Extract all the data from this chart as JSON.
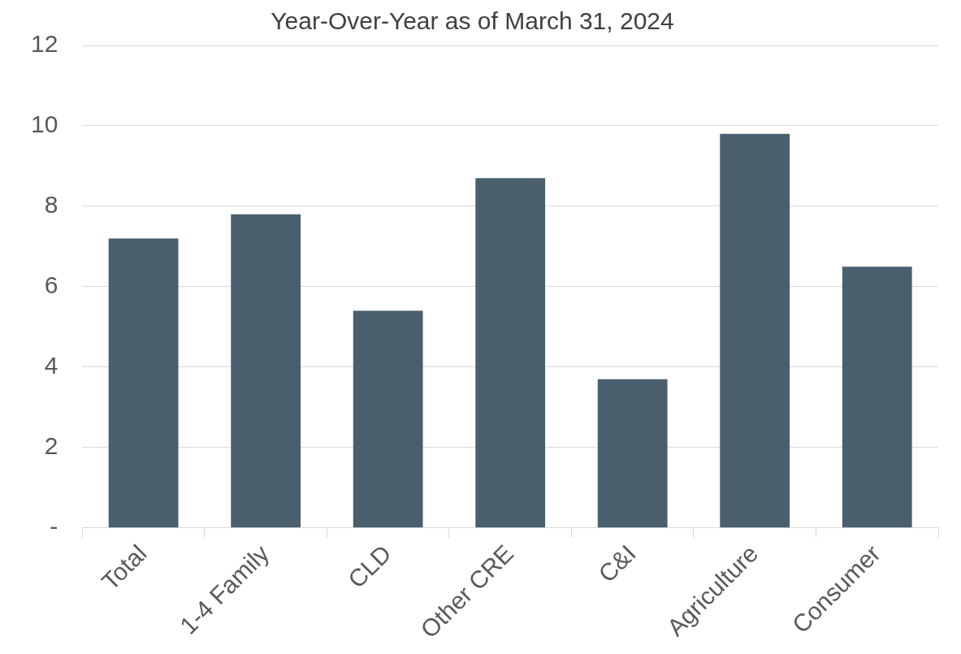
{
  "chart_data": {
    "type": "bar",
    "title": "Year-Over-Year as of March 31, 2024",
    "categories": [
      "Total",
      "1-4 Family",
      "CLD",
      "Other CRE",
      "C&I",
      "Agriculture",
      "Consumer"
    ],
    "values": [
      7.2,
      7.8,
      5.4,
      8.7,
      3.7,
      9.8,
      6.5
    ],
    "color": "#4a5f6d",
    "ylim": [
      0,
      12
    ],
    "yticks": [
      {
        "value": 0,
        "label": "-"
      },
      2,
      4,
      6,
      8,
      10,
      12
    ],
    "grid": "y",
    "legend": false
  }
}
